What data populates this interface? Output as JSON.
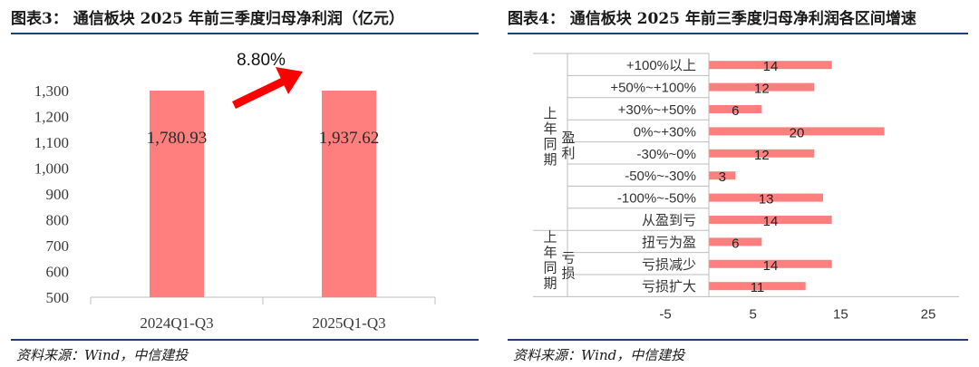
{
  "left": {
    "title": "图表3： 通信板块 2025 年前三季度归母净利润（亿元）",
    "source": "资料来源：Wind，中信建投",
    "growth_label": "8.80%"
  },
  "right": {
    "title": "图表4： 通信板块 2025 年前三季度归母净利润各区间增速",
    "source": "资料来源：Wind，中信建投",
    "group_labels": {
      "profit": [
        "上年同期",
        "盈利"
      ],
      "loss": [
        "上年同期",
        "亏损"
      ]
    }
  },
  "colors": {
    "bar": "#ff7f7f",
    "arrow": "#ff0000",
    "rule": "#1f3e7a",
    "axis": "#bfbfbf"
  },
  "chart_data": [
    {
      "type": "bar",
      "categories": [
        "2024Q1-Q3",
        "2025Q1-Q3"
      ],
      "values": [
        1780.93,
        1937.62
      ],
      "data_labels": [
        "1,780.93",
        "1,937.62"
      ],
      "yticks": [
        "500",
        "600",
        "700",
        "800",
        "900",
        "1,000",
        "1,100",
        "1,200",
        "1,300"
      ],
      "ylim": [
        500,
        1300
      ]
    },
    {
      "type": "bar",
      "orientation": "horizontal",
      "categories": [
        "+100%以上",
        "+50%~+100%",
        "+30%~+50%",
        "0%~+30%",
        "-30%~0%",
        "-50%~-30%",
        "-100%~-50%",
        "从盈到亏",
        "扭亏为盈",
        "亏损减少",
        "亏损扩大"
      ],
      "values": [
        14,
        12,
        6,
        20,
        12,
        3,
        13,
        14,
        6,
        14,
        11
      ],
      "xticks": [
        "-5",
        "5",
        "15",
        "25"
      ],
      "xlim": [
        -5,
        25
      ]
    }
  ]
}
